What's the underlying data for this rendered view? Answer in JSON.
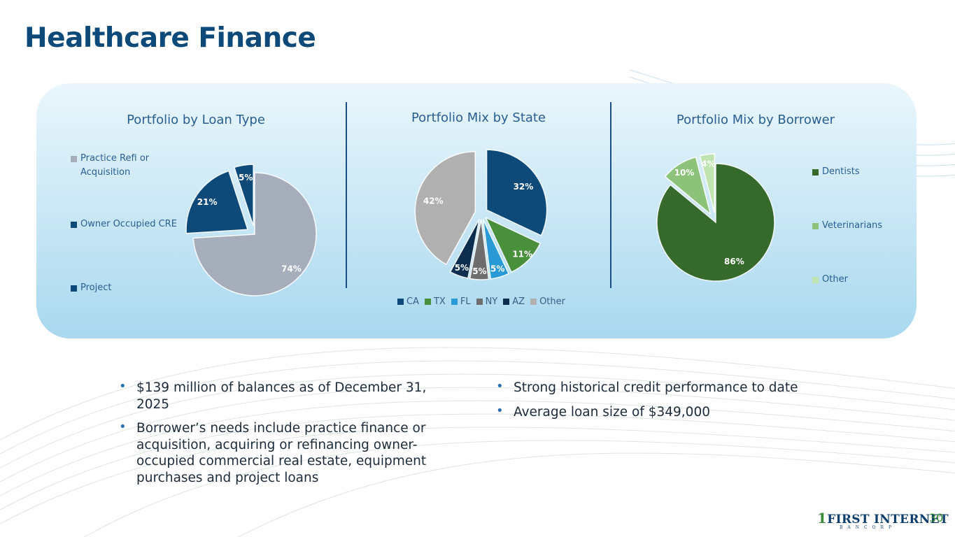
{
  "slide": {
    "title": "Healthcare Finance",
    "page_number": "30"
  },
  "logo": {
    "main_first": "1",
    "main_rest": "FIRST INTERNET",
    "sub": "BANCORP"
  },
  "bullets_left": [
    "$139 million of balances as of December 31, 2025",
    "Borrower’s needs include practice finance or acquisition, acquiring or refinancing owner-occupied commercial real estate, equipment purchases and project loans"
  ],
  "bullets_right": [
    "Strong historical credit performance to date",
    "Average loan size of $349,000"
  ],
  "chart_data": [
    {
      "type": "pie",
      "title": "Portfolio by Loan Type",
      "legend": "left",
      "categories": [
        "Practice Refi or Acquisition",
        "Owner Occupied CRE",
        "Project"
      ],
      "values": [
        74,
        21,
        5
      ],
      "labels": [
        "74%",
        "21%",
        "5%"
      ],
      "colors": [
        "#a6adbb",
        "#0d4a7a",
        "#0d4a7a"
      ],
      "label_colors": [
        "#ffffff",
        "#ffffff",
        "#ffffff"
      ],
      "exploded": [
        false,
        true,
        true
      ]
    },
    {
      "type": "pie",
      "title": "Portfolio Mix by State",
      "legend": "bottom",
      "categories": [
        "CA",
        "TX",
        "FL",
        "NY",
        "AZ",
        "Other"
      ],
      "values": [
        32,
        11,
        5,
        5,
        5,
        42
      ],
      "labels": [
        "32%",
        "11%",
        "5%",
        "5%",
        "5%",
        "42%"
      ],
      "colors": [
        "#0d4a7a",
        "#4a8f3c",
        "#2a9ad6",
        "#6e6e6e",
        "#0d2f4f",
        "#b0b0b0"
      ],
      "label_colors": [
        "#ffffff",
        "#ffffff",
        "#ffffff",
        "#ffffff",
        "#ffffff",
        "#ffffff"
      ],
      "exploded": [
        true,
        true,
        true,
        true,
        true,
        true
      ]
    },
    {
      "type": "pie",
      "title": "Portfolio Mix by Borrower",
      "legend": "right",
      "categories": [
        "Dentists",
        "Veterinarians",
        "Other"
      ],
      "values": [
        86,
        10,
        4
      ],
      "labels": [
        "86%",
        "10%",
        "4%"
      ],
      "colors": [
        "#356a2c",
        "#8cc27a",
        "#c0e3b0"
      ],
      "label_colors": [
        "#ffffff",
        "#ffffff",
        "#ffffff"
      ],
      "exploded": [
        false,
        true,
        true
      ]
    }
  ]
}
